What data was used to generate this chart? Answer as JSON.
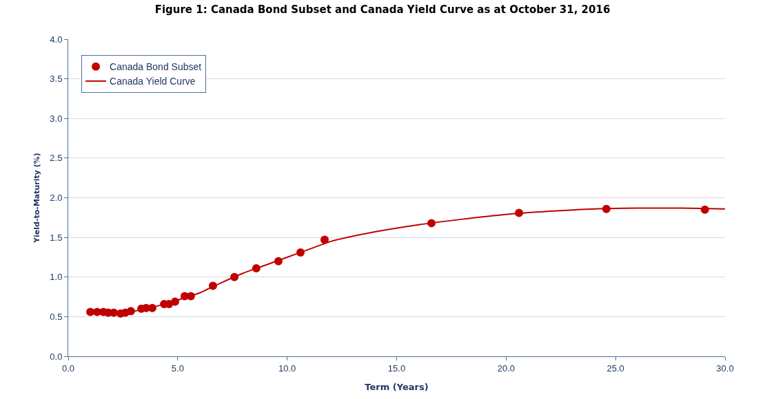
{
  "chart_data": {
    "type": "scatter",
    "title": "Figure 1: Canada Bond Subset and Canada Yield Curve as at October 31, 2016",
    "xlabel": "Term (Years)",
    "ylabel": "Yield-to-Maturity (%)",
    "series": [
      {
        "name": "Canada Bond Subset",
        "color": "#c00000",
        "marker": "circle",
        "x": [
          1.01,
          1.32,
          1.61,
          1.83,
          2.08,
          2.39,
          2.61,
          2.86,
          3.34,
          3.56,
          3.84,
          4.38,
          4.6,
          4.88,
          5.32,
          5.6,
          6.61,
          7.59,
          8.59,
          9.6,
          10.61,
          11.71,
          16.59,
          20.59,
          24.58,
          29.08
        ],
        "values": [
          0.56,
          0.56,
          0.56,
          0.55,
          0.55,
          0.54,
          0.55,
          0.57,
          0.6,
          0.61,
          0.61,
          0.66,
          0.66,
          0.69,
          0.76,
          0.76,
          0.89,
          1.0,
          1.11,
          1.2,
          1.31,
          1.47,
          1.68,
          1.81,
          1.86,
          1.85
        ]
      },
      {
        "name": "Canada Yield Curve",
        "type": "line",
        "color": "#c00000",
        "marker": "none",
        "line_style": "solid",
        "x": [
          1,
          2,
          3,
          4,
          5,
          6,
          7,
          8,
          9,
          10,
          11,
          12,
          14,
          16,
          18,
          20,
          22,
          24,
          26,
          28,
          30
        ],
        "values": [
          0.56,
          0.55,
          0.57,
          0.63,
          0.71,
          0.8,
          0.93,
          1.05,
          1.15,
          1.25,
          1.35,
          1.45,
          1.57,
          1.66,
          1.73,
          1.79,
          1.83,
          1.86,
          1.87,
          1.87,
          1.86
        ]
      }
    ],
    "xlim": [
      0,
      30
    ],
    "xticks": [
      {
        "value": 0,
        "label": "0.0"
      },
      {
        "value": 5,
        "label": "5.0"
      },
      {
        "value": 10,
        "label": "10.0"
      },
      {
        "value": 15,
        "label": "15.0"
      },
      {
        "value": 20,
        "label": "20.0"
      },
      {
        "value": 25,
        "label": "25.0"
      },
      {
        "value": 30,
        "label": "30.0"
      }
    ],
    "ylim": [
      0,
      4
    ],
    "yticks": [
      {
        "value": 0,
        "label": "0.0"
      },
      {
        "value": 0.5,
        "label": "0.5"
      },
      {
        "value": 1,
        "label": "1.0"
      },
      {
        "value": 1.5,
        "label": "1.5"
      },
      {
        "value": 2,
        "label": "2.0"
      },
      {
        "value": 2.5,
        "label": "2.5"
      },
      {
        "value": 3,
        "label": "3.0"
      },
      {
        "value": 3.5,
        "label": "3.5"
      },
      {
        "value": 4,
        "label": "4.0"
      }
    ],
    "grid": "y",
    "legend": "top left"
  }
}
